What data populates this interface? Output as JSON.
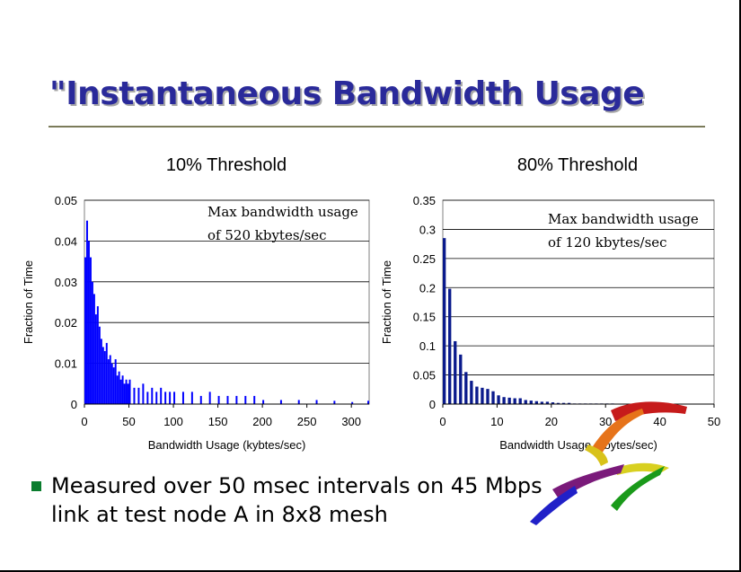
{
  "slide": {
    "title": "\"Instantaneous Bandwidth Usage",
    "bullet_line1": "Measured over 50 msec intervals on 45 Mbps",
    "bullet_line2": "link at test node A in 8x8 mesh"
  },
  "colors": {
    "title": "#2a2a9a",
    "bar": "#0000ff",
    "bar2": "#0a1a8c",
    "bullet": "#0a7d2e"
  },
  "chart_data": [
    {
      "type": "bar",
      "title": "10% Threshold",
      "xlabel": "Bandwidth Usage (kybtes/sec)",
      "ylabel": "Fraction of Time",
      "xlim": [
        0,
        320
      ],
      "ylim": [
        0,
        0.05
      ],
      "xticks": [
        "0",
        "50",
        "100",
        "150",
        "200",
        "250",
        "300"
      ],
      "yticks": [
        "0",
        "0.01",
        "0.02",
        "0.03",
        "0.04",
        "0.05"
      ],
      "annotation": [
        "Max bandwidth usage",
        "of 520 kbytes/sec"
      ],
      "grid": true,
      "bin_width": 2,
      "x": [
        0,
        2,
        4,
        6,
        8,
        10,
        12,
        14,
        16,
        18,
        20,
        22,
        24,
        26,
        28,
        30,
        32,
        34,
        36,
        38,
        40,
        42,
        44,
        46,
        48,
        50,
        55,
        60,
        65,
        70,
        75,
        80,
        85,
        90,
        95,
        100,
        110,
        120,
        130,
        140,
        150,
        160,
        170,
        180,
        190,
        200,
        220,
        240,
        260,
        280,
        300,
        318
      ],
      "values": [
        0.036,
        0.045,
        0.04,
        0.036,
        0.03,
        0.027,
        0.022,
        0.024,
        0.019,
        0.016,
        0.014,
        0.013,
        0.015,
        0.011,
        0.012,
        0.01,
        0.009,
        0.011,
        0.007,
        0.008,
        0.006,
        0.007,
        0.005,
        0.006,
        0.005,
        0.006,
        0.004,
        0.004,
        0.005,
        0.003,
        0.004,
        0.003,
        0.004,
        0.003,
        0.003,
        0.003,
        0.003,
        0.003,
        0.002,
        0.003,
        0.002,
        0.002,
        0.002,
        0.002,
        0.002,
        0.001,
        0.001,
        0.001,
        0.001,
        0.0008,
        0.0005,
        0.0008
      ]
    },
    {
      "type": "bar",
      "title": "80% Threshold",
      "xlabel": "Bandwidth Usage (kbytes/sec)",
      "ylabel": "Fraction of Time",
      "xlim": [
        0,
        50
      ],
      "ylim": [
        0,
        0.35
      ],
      "xticks": [
        "0",
        "10",
        "20",
        "30",
        "40",
        "50"
      ],
      "yticks": [
        "0",
        "0.05",
        "0.1",
        "0.15",
        "0.2",
        "0.25",
        "0.3",
        "0.35"
      ],
      "annotation": [
        "Max bandwidth usage",
        "of 120 kbytes/sec"
      ],
      "grid": true,
      "bin_width": 1,
      "x": [
        0,
        1,
        2,
        3,
        4,
        5,
        6,
        7,
        8,
        9,
        10,
        11,
        12,
        13,
        14,
        15,
        16,
        17,
        18,
        19,
        20,
        21,
        22,
        23,
        24,
        25,
        26,
        27,
        28,
        29,
        30,
        31,
        32
      ],
      "values": [
        0.285,
        0.198,
        0.108,
        0.085,
        0.055,
        0.04,
        0.03,
        0.028,
        0.026,
        0.022,
        0.015,
        0.012,
        0.011,
        0.01,
        0.01,
        0.007,
        0.006,
        0.005,
        0.004,
        0.004,
        0.003,
        0.002,
        0.002,
        0.002,
        0.001,
        0.001,
        0.001,
        0.001,
        0.001,
        0.001,
        0.001,
        0.001,
        0.0005
      ]
    }
  ]
}
